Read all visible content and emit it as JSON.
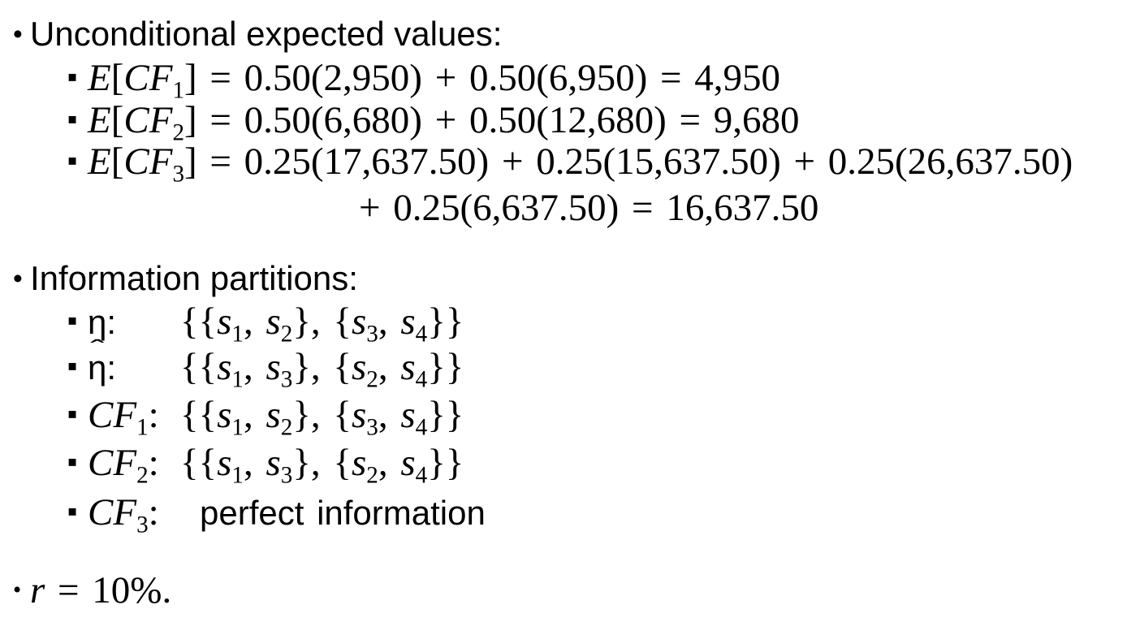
{
  "meta": {
    "background_color": "#ffffff",
    "text_color": "#000000"
  },
  "icons": {
    "bullet_l1": "•",
    "bullet_l2": "▪"
  },
  "sections": {
    "expected_values": {
      "heading": "Unconditional expected values:",
      "equations": [
        "*E*[*CF*_1_] = 0.50(2,950) + 0.50(6,950) = 4,950",
        "*E*[*CF*_2_] = 0.50(6,680) + 0.50(12,680) = 9,680",
        "*E*[*CF*_3_] = 0.25(17,637.50) + 0.25(15,637.50) + 0.25(26,637.50)"
      ],
      "equation3_continuation": "+ 0.25(6,637.50) = 16,637.50"
    },
    "partitions": {
      "heading": "Information partitions:",
      "rows": [
        {
          "label": "η:",
          "value": "{{*s*_1_, *s*_2_}, {*s*_3_, *s*_4_}}"
        },
        {
          "label": "^η^:",
          "value": "{{*s*_1_, *s*_3_}, {*s*_2_, *s*_4_}}"
        },
        {
          "label": "*CF*_1_:",
          "value": "{{*s*_1_, *s*_2_}, {*s*_3_, *s*_4_}}"
        },
        {
          "label": "*CF*_2_:",
          "value": "{{*s*_1_, *s*_3_}, {*s*_2_, *s*_4_}}"
        },
        {
          "label": "*CF*_3_:",
          "value": "perfect information"
        }
      ]
    },
    "discount_rate": {
      "formula": "*r* = 10%."
    }
  }
}
